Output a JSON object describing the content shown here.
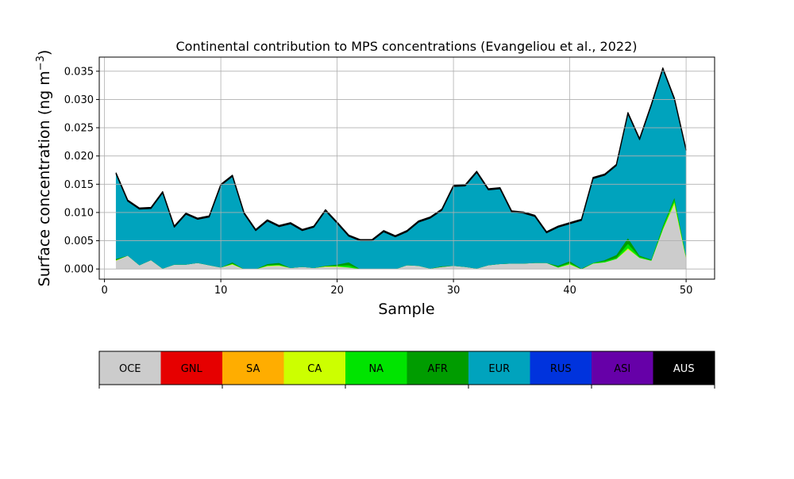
{
  "chart_data": {
    "type": "area",
    "title": "Continental contribution to MPS concentrations (Evangeliou et al., 2022)",
    "xlabel": "Sample",
    "ylabel_main": "Surface concentration (ng m",
    "ylabel_exp": "−3",
    "ylabel_close": ")",
    "xlim": [
      -0.45,
      52.45
    ],
    "ylim": [
      -0.0018,
      0.0375
    ],
    "xticks": [
      0,
      10,
      20,
      30,
      40,
      50
    ],
    "xtick_labels": [
      "0",
      "10",
      "20",
      "30",
      "40",
      "50"
    ],
    "yticks": [
      0.0,
      0.005,
      0.01,
      0.015,
      0.02,
      0.025,
      0.03,
      0.035
    ],
    "ytick_labels": [
      "0.000",
      "0.005",
      "0.010",
      "0.015",
      "0.020",
      "0.025",
      "0.030",
      "0.035"
    ],
    "grid": true,
    "x": [
      1,
      2,
      3,
      4,
      5,
      6,
      7,
      8,
      9,
      10,
      11,
      12,
      13,
      14,
      15,
      16,
      17,
      18,
      19,
      20,
      21,
      22,
      23,
      24,
      25,
      26,
      27,
      28,
      29,
      30,
      31,
      32,
      33,
      34,
      35,
      36,
      37,
      38,
      39,
      40,
      41,
      42,
      43,
      44,
      45,
      46,
      47,
      48,
      49,
      50
    ],
    "series": [
      {
        "key": "OCE",
        "color": "#cccccc",
        "values": [
          0.0015,
          0.0024,
          0.0007,
          0.0016,
          0.0001,
          0.0008,
          0.0008,
          0.0011,
          0.0007,
          0.0003,
          0.0008,
          0.0,
          0.0,
          0.0005,
          0.0006,
          0.0002,
          0.0004,
          0.0002,
          0.0004,
          0.0004,
          0.0003,
          0.0,
          0.0,
          0.0,
          0.0,
          0.0007,
          0.0006,
          0.0001,
          0.0004,
          0.0006,
          0.0004,
          0.0001,
          0.0007,
          0.0009,
          0.001,
          0.001,
          0.0011,
          0.0011,
          0.0003,
          0.0008,
          0.0,
          0.001,
          0.0012,
          0.0018,
          0.0035,
          0.002,
          0.0015,
          0.007,
          0.0115,
          0.0019
        ]
      },
      {
        "key": "CA",
        "color": "#ccff00",
        "values": [
          0.0001,
          0,
          0,
          0,
          0,
          0,
          0,
          0,
          0,
          0,
          0.0001,
          0,
          0,
          0.0001,
          0.0001,
          0,
          0,
          0,
          0.0001,
          0.0001,
          0,
          0,
          0,
          0,
          0,
          0,
          0,
          0,
          0,
          0,
          0,
          0,
          0,
          0,
          0,
          0,
          0,
          0,
          0,
          0.0001,
          0,
          0,
          0,
          0,
          0.0002,
          0,
          0,
          0.0001,
          0.0004,
          0.0002
        ]
      },
      {
        "key": "NA",
        "color": "#00e400",
        "values": [
          0,
          0,
          0,
          0,
          0,
          0,
          0,
          0,
          0,
          0,
          0.0001,
          0,
          0,
          0.0001,
          0.0001,
          0,
          0,
          0,
          0,
          0.0001,
          0.0004,
          0,
          0,
          0,
          0,
          0,
          0,
          0,
          0,
          0,
          0,
          0,
          0,
          0,
          0,
          0,
          0,
          0,
          0.0001,
          0.0002,
          0,
          0.0001,
          0.0002,
          0.0002,
          0.0008,
          0.0002,
          0.0001,
          0.0004,
          0.0005,
          0.0001
        ]
      },
      {
        "key": "AFR",
        "color": "#009c00",
        "values": [
          0.0002,
          0,
          0,
          0,
          0,
          0,
          0,
          0,
          0,
          0,
          0.0002,
          0,
          0,
          0.0002,
          0.0003,
          0,
          0,
          0,
          0.0001,
          0.0002,
          0.0005,
          0,
          0,
          0,
          0,
          0,
          0,
          0,
          0.0001,
          0,
          0,
          0,
          0,
          0,
          0,
          0,
          0,
          0,
          0.0002,
          0.0003,
          0.0001,
          0,
          0.0002,
          0.0005,
          0.001,
          0.0002,
          0.0001,
          0.0002,
          0.0003,
          0.0001
        ]
      },
      {
        "key": "EUR",
        "color": "#00a3bd",
        "values": [
          0.015,
          0.0096,
          0.0099,
          0.0091,
          0.0134,
          0.0066,
          0.0089,
          0.0077,
          0.0085,
          0.0145,
          0.0152,
          0.0098,
          0.0068,
          0.0076,
          0.0064,
          0.0078,
          0.0064,
          0.0072,
          0.0097,
          0.0073,
          0.0046,
          0.005,
          0.005,
          0.0066,
          0.0057,
          0.0059,
          0.0077,
          0.0089,
          0.0099,
          0.014,
          0.0143,
          0.017,
          0.0133,
          0.0133,
          0.0091,
          0.0089,
          0.0082,
          0.0053,
          0.0068,
          0.0066,
          0.0085,
          0.0149,
          0.015,
          0.0158,
          0.022,
          0.0205,
          0.0272,
          0.0277,
          0.0173,
          0.0187
        ]
      },
      {
        "key": "AUS",
        "color": "#000000",
        "values": [
          0.0002,
          0.0002,
          0.0002,
          0.0002,
          0.0002,
          0.0002,
          0.0002,
          0.0002,
          0.0002,
          0.0002,
          0.0002,
          0.0002,
          0.0002,
          0.0002,
          0.0002,
          0.0002,
          0.0002,
          0.0002,
          0.0002,
          0.0002,
          0.0002,
          0.0002,
          0.0002,
          0.0002,
          0.0002,
          0.0002,
          0.0002,
          0.0002,
          0.0002,
          0.0002,
          0.0002,
          0.0002,
          0.0002,
          0.0002,
          0.0002,
          0.0002,
          0.0002,
          0.0002,
          0.0002,
          0.0002,
          0.0002,
          0.0002,
          0.0002,
          0.0002,
          0.0002,
          0.0002,
          0.0002,
          0.0002,
          0.0002,
          0.0002
        ]
      }
    ],
    "legend": {
      "placement": "bottom",
      "entries": [
        {
          "label": "OCE",
          "color": "#cccccc",
          "text_color": "#000000"
        },
        {
          "label": "GNL",
          "color": "#e60000",
          "text_color": "#000000"
        },
        {
          "label": "SA",
          "color": "#ffad00",
          "text_color": "#000000"
        },
        {
          "label": "CA",
          "color": "#ccff00",
          "text_color": "#000000"
        },
        {
          "label": "NA",
          "color": "#00e400",
          "text_color": "#000000"
        },
        {
          "label": "AFR",
          "color": "#009c00",
          "text_color": "#000000"
        },
        {
          "label": "EUR",
          "color": "#00a3bd",
          "text_color": "#000000"
        },
        {
          "label": "RUS",
          "color": "#0033dd",
          "text_color": "#000000"
        },
        {
          "label": "ASI",
          "color": "#6600a8",
          "text_color": "#000000"
        },
        {
          "label": "AUS",
          "color": "#000000",
          "text_color": "#ffffff"
        }
      ]
    }
  }
}
